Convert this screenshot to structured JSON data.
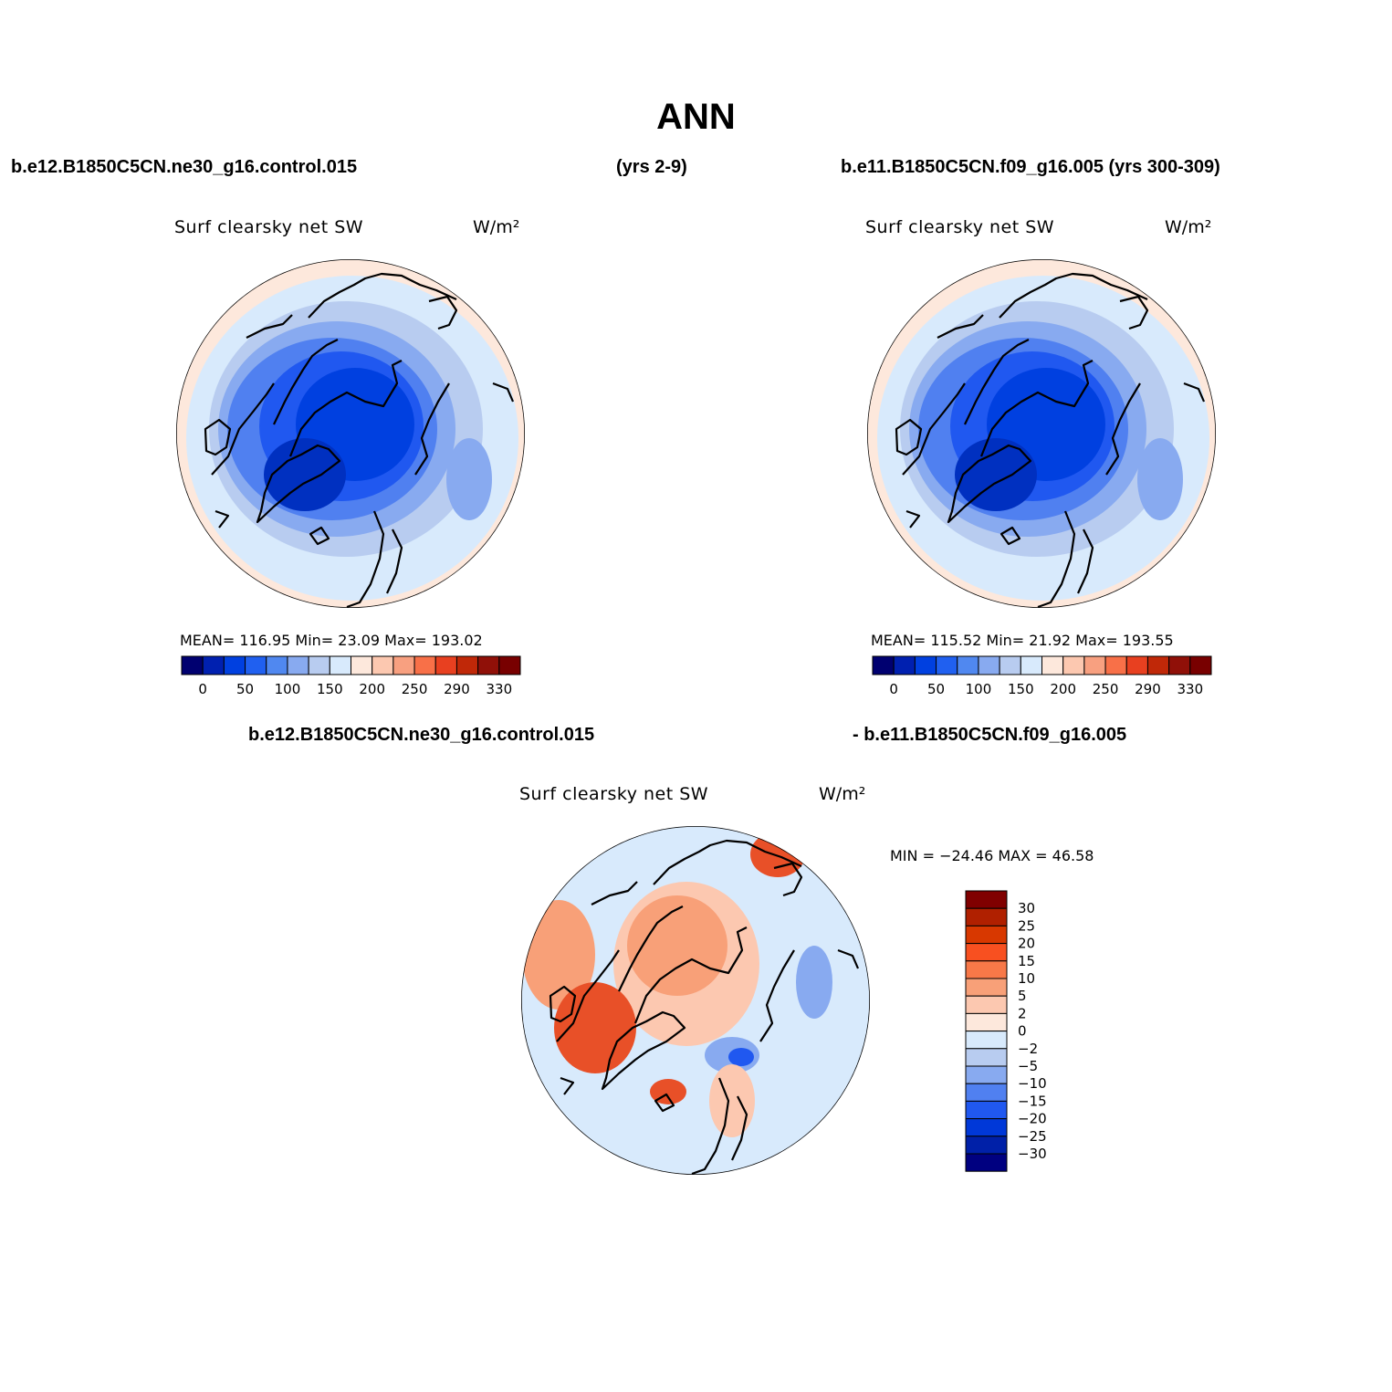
{
  "figure": {
    "title": "ANN",
    "left_case": "b.e12.B1850C5CN.ne30_g16.control.015",
    "center_years": "(yrs 2-9)",
    "right_case": "b.e11.B1850C5CN.f09_g16.005 (yrs 300-309)",
    "diff_case_a": "b.e12.B1850C5CN.ne30_g16.control.015",
    "diff_case_b": "- b.e11.B1850C5CN.f09_g16.005"
  },
  "panels": {
    "left": {
      "variable": "Surf clearsky net SW",
      "units": "W/m²",
      "stats": "MEAN= 116.95   Min=   23.09   Max= 193.02",
      "mean": 116.95,
      "min": 23.09,
      "max": 193.02
    },
    "right": {
      "variable": "Surf clearsky net SW",
      "units": "W/m²",
      "stats": "MEAN= 115.52   Min=   21.92   Max= 193.55",
      "mean": 115.52,
      "min": 21.92,
      "max": 193.55
    },
    "diff": {
      "variable": "Surf clearsky net SW",
      "units": "W/m²",
      "stats": "MIN = −24.46  MAX =   46.58",
      "min": -24.46,
      "max": 46.58
    }
  },
  "colorbars": {
    "abs": {
      "colors": [
        "#000070",
        "#0020b0",
        "#0040e0",
        "#2060f0",
        "#5088f0",
        "#88aaf0",
        "#b8ccf0",
        "#d8eafc",
        "#fde8dc",
        "#fcc8b0",
        "#f8a080",
        "#f87048",
        "#e84020",
        "#c02808",
        "#901008",
        "#780000"
      ],
      "tick_labels": [
        "0",
        "50",
        "100",
        "150",
        "200",
        "250",
        "290",
        "330"
      ]
    },
    "diff": {
      "colors": [
        "#800000",
        "#b02000",
        "#d83800",
        "#f85020",
        "#f87848",
        "#f8a078",
        "#fcc8b0",
        "#fde8dc",
        "#d8eafc",
        "#b8ccf0",
        "#88aaf0",
        "#5080f0",
        "#2058f0",
        "#0038d8",
        "#0020a8",
        "#000080"
      ],
      "tick_labels": [
        "30",
        "25",
        "20",
        "15",
        "10",
        "5",
        "2",
        "0",
        "−2",
        "−5",
        "−10",
        "−15",
        "−20",
        "−25",
        "−30"
      ]
    }
  },
  "map_colors": {
    "outer": "#fde8dc",
    "light": "#d8eafc",
    "pale": "#b8ccf0",
    "mid": "#88aaf0",
    "blue": "#5080f0",
    "deep": "#2058f0",
    "core": "#0040e0",
    "darkcore": "#0030c0",
    "diff_bg": "#d8eafc",
    "diff_pos": "#f8a078",
    "diff_pos_light": "#fcc8b0",
    "diff_pos_strong": "#e85028",
    "diff_neg": "#88aaf0",
    "diff_neg_strong": "#2058f0"
  }
}
